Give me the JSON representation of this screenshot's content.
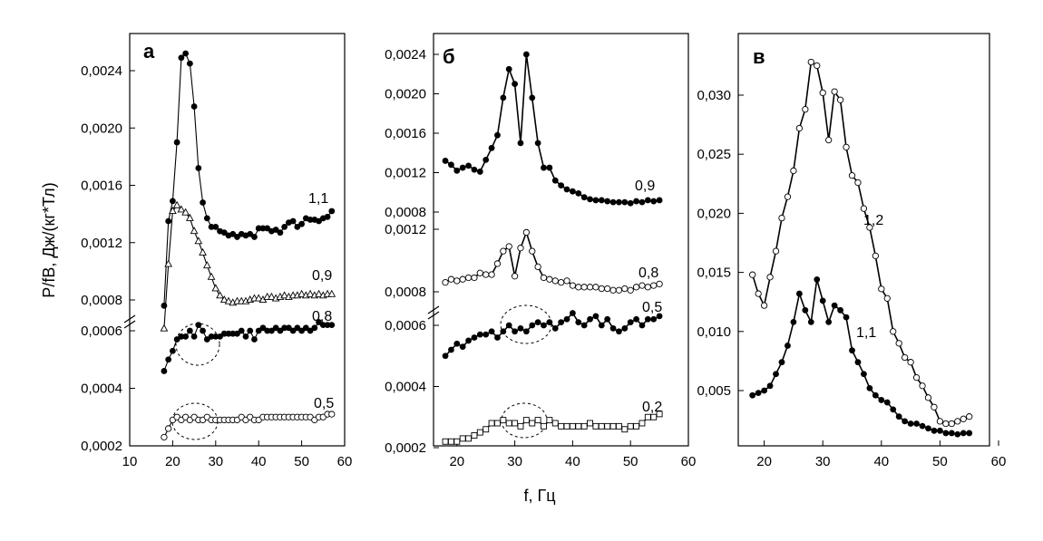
{
  "figure": {
    "ylabel": "P/fB, Дж/(кг*Тл)",
    "xlabel": "f,  Гц"
  },
  "chart_data": [
    {
      "type": "line",
      "panel": "а",
      "x_ticks": [
        10,
        20,
        30,
        40,
        50,
        60
      ],
      "y_ticks_upper": [
        "0,0008",
        "0,0012",
        "0,0016",
        "0,0020",
        "0,0024"
      ],
      "y_ticks_lower": [
        "0,0002",
        "0,0004",
        "0,0006"
      ],
      "broken_y_axis": true,
      "series": [
        {
          "name": "1,1",
          "marker": "filled-circle",
          "x": [
            18,
            19,
            20,
            21,
            22,
            23,
            24,
            25,
            26,
            27,
            28,
            29,
            30,
            31,
            32,
            33,
            34,
            35,
            36,
            37,
            38,
            39,
            40,
            41,
            42,
            43,
            44,
            45,
            46,
            47,
            48,
            49,
            50,
            51,
            52,
            53,
            54,
            55,
            56,
            57
          ],
          "y": [
            0.00076,
            0.00135,
            0.00149,
            0.0019,
            0.00249,
            0.00252,
            0.00245,
            0.00215,
            0.00172,
            0.00148,
            0.00137,
            0.00131,
            0.00131,
            0.00128,
            0.00127,
            0.00125,
            0.00126,
            0.00124,
            0.00126,
            0.00125,
            0.00126,
            0.00124,
            0.0013,
            0.0013,
            0.0013,
            0.00128,
            0.00129,
            0.00127,
            0.00131,
            0.00134,
            0.00135,
            0.00131,
            0.00133,
            0.00137,
            0.00136,
            0.00136,
            0.00135,
            0.00137,
            0.00138,
            0.00142
          ]
        },
        {
          "name": "0,9",
          "marker": "open-triangle",
          "x": [
            18,
            19,
            20,
            21,
            22,
            23,
            24,
            25,
            26,
            27,
            28,
            29,
            30,
            31,
            32,
            33,
            34,
            35,
            36,
            37,
            38,
            39,
            40,
            41,
            42,
            43,
            44,
            45,
            46,
            47,
            48,
            49,
            50,
            51,
            52,
            53,
            54,
            55,
            56,
            57
          ],
          "y": [
            0.0006,
            0.00105,
            0.00142,
            0.00146,
            0.00143,
            0.00141,
            0.00137,
            0.00128,
            0.00121,
            0.00113,
            0.00104,
            0.00096,
            0.00088,
            0.00083,
            0.0008,
            0.00079,
            0.00078,
            0.00079,
            0.00079,
            0.00079,
            0.0008,
            0.00081,
            0.00081,
            0.0008,
            0.00082,
            0.00082,
            0.00081,
            0.00082,
            0.00083,
            0.00082,
            0.00083,
            0.00083,
            0.00084,
            0.00083,
            0.00084,
            0.00083,
            0.00084,
            0.00083,
            0.00084,
            0.00084
          ]
        },
        {
          "name": "0,8",
          "marker": "filled-circle",
          "x": [
            18,
            19,
            20,
            21,
            22,
            23,
            24,
            25,
            26,
            27,
            28,
            29,
            30,
            31,
            32,
            33,
            34,
            35,
            36,
            37,
            38,
            39,
            40,
            41,
            42,
            43,
            44,
            45,
            46,
            47,
            48,
            49,
            50,
            51,
            52,
            53,
            54,
            55,
            56,
            57
          ],
          "y": [
            0.00046,
            0.0005,
            0.00053,
            0.00057,
            0.00058,
            0.00058,
            0.0006,
            0.00058,
            0.00062,
            0.0006,
            0.00057,
            0.00058,
            0.00058,
            0.00058,
            0.00059,
            0.00059,
            0.00059,
            0.00059,
            0.0006,
            0.00058,
            0.0006,
            0.00057,
            0.0006,
            0.00061,
            0.0006,
            0.0006,
            0.00061,
            0.0006,
            0.00061,
            0.00061,
            0.0006,
            0.00061,
            0.0006,
            0.00061,
            0.0006,
            0.00061,
            0.00063,
            0.00062,
            0.00062,
            0.00062
          ]
        },
        {
          "name": "0,5",
          "marker": "open-circle",
          "x": [
            18,
            19,
            20,
            21,
            22,
            23,
            24,
            25,
            26,
            27,
            28,
            29,
            30,
            31,
            32,
            33,
            34,
            35,
            36,
            37,
            38,
            39,
            40,
            41,
            42,
            43,
            44,
            45,
            46,
            47,
            48,
            49,
            50,
            51,
            52,
            53,
            54,
            55,
            56,
            57
          ],
          "y": [
            0.00023,
            0.00026,
            0.00029,
            0.0003,
            0.00029,
            0.0003,
            0.00029,
            0.0003,
            0.00029,
            0.00029,
            0.0003,
            0.00029,
            0.00029,
            0.00029,
            0.00029,
            0.00029,
            0.00029,
            0.00029,
            0.0003,
            0.00029,
            0.0003,
            0.00029,
            0.00029,
            0.0003,
            0.0003,
            0.0003,
            0.0003,
            0.0003,
            0.0003,
            0.0003,
            0.0003,
            0.0003,
            0.0003,
            0.0003,
            0.0003,
            0.00029,
            0.0003,
            0.0003,
            0.00031,
            0.00031
          ]
        }
      ]
    },
    {
      "type": "line",
      "panel": "б",
      "x_ticks": [
        20,
        30,
        40,
        50,
        60
      ],
      "y_ticks_top": [
        "0,0008",
        "0,0012",
        "0,0016",
        "0,0020",
        "0,0024"
      ],
      "y_ticks_mid": [
        "0,0008",
        "0,0012"
      ],
      "y_ticks_bottom": [
        "0,0002",
        "0,0004",
        "0,0006"
      ],
      "broken_y_axis": true,
      "series": [
        {
          "name": "0,9",
          "marker": "filled-circle",
          "x": [
            18,
            19,
            20,
            21,
            22,
            23,
            24,
            25,
            26,
            27,
            28,
            29,
            30,
            31,
            32,
            33,
            34,
            35,
            36,
            37,
            38,
            39,
            40,
            41,
            42,
            43,
            44,
            45,
            46,
            47,
            48,
            49,
            50,
            51,
            52,
            53,
            54,
            55
          ],
          "y": [
            0.00132,
            0.00128,
            0.00122,
            0.00125,
            0.00127,
            0.00123,
            0.00121,
            0.00133,
            0.00145,
            0.00158,
            0.00196,
            0.00225,
            0.0021,
            0.0015,
            0.0024,
            0.00196,
            0.0015,
            0.00125,
            0.00125,
            0.00112,
            0.00107,
            0.00103,
            0.00101,
            0.00099,
            0.00095,
            0.00093,
            0.00092,
            0.00092,
            0.00091,
            0.0009,
            0.0009,
            0.0009,
            0.00089,
            0.00091,
            0.0009,
            0.00092,
            0.00091,
            0.00092
          ]
        },
        {
          "name": "0,8",
          "marker": "open-circle",
          "x": [
            18,
            19,
            20,
            21,
            22,
            23,
            24,
            25,
            26,
            27,
            28,
            29,
            30,
            31,
            32,
            33,
            34,
            35,
            36,
            37,
            38,
            39,
            40,
            41,
            42,
            43,
            44,
            45,
            46,
            47,
            48,
            49,
            50,
            51,
            52,
            53,
            54,
            55
          ],
          "y": [
            0.00086,
            0.00088,
            0.00087,
            0.00088,
            0.00089,
            0.00089,
            0.00092,
            0.00091,
            0.00091,
            0.00098,
            0.00106,
            0.00109,
            0.0009,
            0.00108,
            0.00118,
            0.00106,
            0.00096,
            0.00089,
            0.00088,
            0.00087,
            0.00086,
            0.00087,
            0.00084,
            0.00083,
            0.00083,
            0.00083,
            0.00083,
            0.00082,
            0.00082,
            0.00081,
            0.00081,
            0.00082,
            0.00081,
            0.00083,
            0.00084,
            0.00083,
            0.00084,
            0.00085
          ]
        },
        {
          "name": "0,5",
          "marker": "filled-circle",
          "x": [
            18,
            19,
            20,
            21,
            22,
            23,
            24,
            25,
            26,
            27,
            28,
            29,
            30,
            31,
            32,
            33,
            34,
            35,
            36,
            37,
            38,
            39,
            40,
            41,
            42,
            43,
            44,
            45,
            46,
            47,
            48,
            49,
            50,
            51,
            52,
            53,
            54,
            55
          ],
          "y": [
            0.0005,
            0.00052,
            0.00054,
            0.00053,
            0.00055,
            0.00056,
            0.00057,
            0.00057,
            0.00058,
            0.00056,
            0.00058,
            0.0006,
            0.00058,
            0.00059,
            0.00058,
            0.0006,
            0.00061,
            0.0006,
            0.00061,
            0.00059,
            0.00061,
            0.00062,
            0.00064,
            0.00061,
            0.0006,
            0.00062,
            0.00063,
            0.0006,
            0.00062,
            0.00059,
            0.00058,
            0.00059,
            0.00061,
            0.00062,
            0.0006,
            0.00062,
            0.00062,
            0.00063
          ]
        },
        {
          "name": "0,2",
          "marker": "open-square",
          "x": [
            18,
            19,
            20,
            21,
            22,
            23,
            24,
            25,
            26,
            27,
            28,
            29,
            30,
            31,
            32,
            33,
            34,
            35,
            36,
            37,
            38,
            39,
            40,
            41,
            42,
            43,
            44,
            45,
            46,
            47,
            48,
            49,
            50,
            51,
            52,
            53,
            54,
            55
          ],
          "y": [
            0.00022,
            0.00022,
            0.00022,
            0.00023,
            0.00023,
            0.00024,
            0.00025,
            0.00026,
            0.00028,
            0.00028,
            0.00029,
            0.00028,
            0.00028,
            0.00027,
            0.00029,
            0.00028,
            0.00029,
            0.00027,
            0.00029,
            0.00028,
            0.00027,
            0.00027,
            0.00027,
            0.00027,
            0.00027,
            0.00028,
            0.00027,
            0.00027,
            0.00027,
            0.00027,
            0.00027,
            0.00026,
            0.00027,
            0.00027,
            0.00028,
            0.0003,
            0.0003,
            0.00031
          ]
        }
      ]
    },
    {
      "type": "line",
      "panel": "в",
      "x_ticks": [
        20,
        30,
        40,
        50,
        60
      ],
      "y_ticks": [
        "0,005",
        "0,010",
        "0,015",
        "0,020",
        "0,025",
        "0,030"
      ],
      "ylim": [
        0,
        0.034
      ],
      "series": [
        {
          "name": "1,2",
          "marker": "open-circle",
          "x": [
            18,
            19,
            20,
            21,
            22,
            23,
            24,
            25,
            26,
            27,
            28,
            29,
            30,
            31,
            32,
            33,
            34,
            35,
            36,
            37,
            38,
            39,
            40,
            41,
            42,
            43,
            44,
            45,
            46,
            47,
            48,
            49,
            50,
            51,
            52,
            53,
            54,
            55
          ],
          "y": [
            0.0148,
            0.0132,
            0.0122,
            0.0146,
            0.0168,
            0.0196,
            0.0214,
            0.0236,
            0.0272,
            0.0288,
            0.0328,
            0.0325,
            0.0302,
            0.0262,
            0.0303,
            0.0296,
            0.0256,
            0.0232,
            0.0226,
            0.0204,
            0.0188,
            0.0164,
            0.0136,
            0.0128,
            0.01,
            0.009,
            0.0078,
            0.0074,
            0.0061,
            0.0054,
            0.0044,
            0.0036,
            0.0024,
            0.0022,
            0.0022,
            0.0024,
            0.0026,
            0.0028
          ]
        },
        {
          "name": "1,1",
          "marker": "filled-circle",
          "x": [
            18,
            19,
            20,
            21,
            22,
            23,
            24,
            25,
            26,
            27,
            28,
            29,
            30,
            31,
            32,
            33,
            34,
            35,
            36,
            37,
            38,
            39,
            40,
            41,
            42,
            43,
            44,
            45,
            46,
            47,
            48,
            49,
            50,
            51,
            52,
            53,
            54,
            55
          ],
          "y": [
            0.0046,
            0.0048,
            0.005,
            0.0054,
            0.0064,
            0.0074,
            0.0088,
            0.0108,
            0.0132,
            0.0118,
            0.0108,
            0.0144,
            0.0126,
            0.0108,
            0.0122,
            0.0118,
            0.0112,
            0.0084,
            0.0074,
            0.0064,
            0.0052,
            0.0046,
            0.0042,
            0.004,
            0.0034,
            0.0028,
            0.0024,
            0.0022,
            0.0022,
            0.002,
            0.0018,
            0.0016,
            0.0016,
            0.0014,
            0.0014,
            0.0013,
            0.0014,
            0.0014
          ]
        }
      ]
    }
  ]
}
